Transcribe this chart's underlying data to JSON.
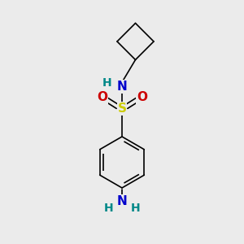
{
  "background_color": "#ebebeb",
  "bond_color": "#000000",
  "bond_width": 1.2,
  "atoms": {
    "S": {
      "color": "#cccc00",
      "fontsize": 11,
      "fontweight": "bold"
    },
    "N": {
      "color": "#0000cc",
      "fontsize": 11,
      "fontweight": "bold"
    },
    "O": {
      "color": "#cc0000",
      "fontsize": 11,
      "fontweight": "bold"
    },
    "H_N": {
      "color": "#008888",
      "fontsize": 10,
      "fontweight": "bold"
    },
    "H_NH2": {
      "color": "#008888",
      "fontsize": 10,
      "fontweight": "bold"
    }
  },
  "figsize": [
    3.0,
    3.0
  ],
  "dpi": 100,
  "xlim": [
    0,
    10
  ],
  "ylim": [
    0,
    10
  ]
}
